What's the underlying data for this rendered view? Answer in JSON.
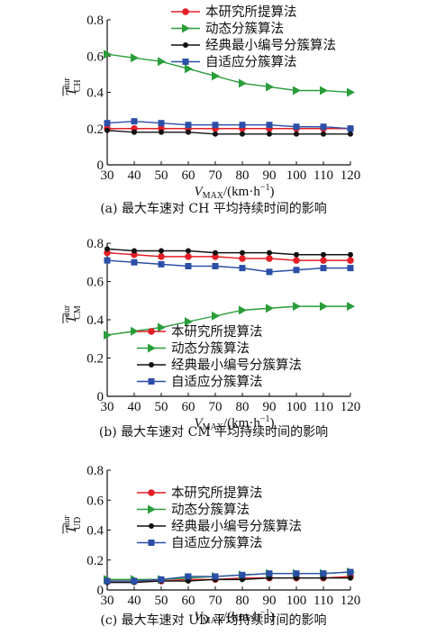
{
  "chart_data": [
    {
      "type": "line",
      "caption": "(a) 最大车速对 CH 平均持续时间的影响",
      "xlabel": {
        "var": "V",
        "sub": "MAX",
        "unit": "/(km·h",
        "sup": "−1",
        "close": ")"
      },
      "ylabel": {
        "var": "T",
        "sup": "dur",
        "sub": "CH"
      },
      "x": [
        30,
        40,
        50,
        60,
        70,
        80,
        90,
        100,
        110,
        120
      ],
      "xlim": [
        30,
        120
      ],
      "ylim": [
        0,
        0.8
      ],
      "yticks": [
        "0",
        "0.2",
        "0.4",
        "0.6",
        "0.8"
      ],
      "xticks": [
        "30",
        "40",
        "50",
        "60",
        "70",
        "80",
        "90",
        "100",
        "110",
        "120"
      ],
      "legend_position": "top",
      "series": [
        {
          "name": "本研究所提算法",
          "color": "#e41e26",
          "marker": "circle",
          "values": [
            0.2,
            0.2,
            0.2,
            0.2,
            0.2,
            0.2,
            0.2,
            0.2,
            0.2,
            0.2
          ]
        },
        {
          "name": "动态分簇算法",
          "color": "#2a9d3a",
          "marker": "triangle",
          "values": [
            0.61,
            0.59,
            0.57,
            0.53,
            0.49,
            0.45,
            0.43,
            0.41,
            0.41,
            0.4
          ]
        },
        {
          "name": "经典最小编号分簇算法",
          "color": "#111111",
          "marker": "circle",
          "values": [
            0.19,
            0.18,
            0.18,
            0.18,
            0.17,
            0.17,
            0.17,
            0.17,
            0.17,
            0.17
          ]
        },
        {
          "name": "自适应分簇算法",
          "color": "#2b4fa8",
          "marker": "square",
          "values": [
            0.23,
            0.24,
            0.23,
            0.22,
            0.22,
            0.22,
            0.22,
            0.21,
            0.21,
            0.2
          ]
        }
      ]
    },
    {
      "type": "line",
      "caption": "(b) 最大车速对 CM 平均持续时间的影响",
      "xlabel": {
        "var": "V",
        "sub": "MAX",
        "unit": "/(km·h",
        "sup": "−1",
        "close": ")"
      },
      "ylabel": {
        "var": "T",
        "sup": "dur",
        "sub": "CM"
      },
      "x": [
        30,
        40,
        50,
        60,
        70,
        80,
        90,
        100,
        110,
        120
      ],
      "xlim": [
        30,
        120
      ],
      "ylim": [
        0,
        0.8
      ],
      "yticks": [
        "0",
        "0.2",
        "0.4",
        "0.6",
        "0.8"
      ],
      "xticks": [
        "30",
        "40",
        "50",
        "60",
        "70",
        "80",
        "90",
        "100",
        "110",
        "120"
      ],
      "legend_position": "bottom-right",
      "series": [
        {
          "name": "本研究所提算法",
          "color": "#e41e26",
          "marker": "circle",
          "values": [
            0.75,
            0.74,
            0.73,
            0.73,
            0.73,
            0.72,
            0.72,
            0.71,
            0.71,
            0.71
          ]
        },
        {
          "name": "动态分簇算法",
          "color": "#2a9d3a",
          "marker": "triangle",
          "values": [
            0.32,
            0.34,
            0.36,
            0.39,
            0.42,
            0.45,
            0.46,
            0.47,
            0.47,
            0.47
          ]
        },
        {
          "name": "经典最小编号分簇算法",
          "color": "#111111",
          "marker": "circle",
          "values": [
            0.77,
            0.76,
            0.76,
            0.76,
            0.75,
            0.75,
            0.75,
            0.74,
            0.74,
            0.74
          ]
        },
        {
          "name": "自适应分簇算法",
          "color": "#2b4fa8",
          "marker": "square",
          "values": [
            0.71,
            0.7,
            0.69,
            0.68,
            0.68,
            0.67,
            0.65,
            0.66,
            0.67,
            0.67
          ]
        }
      ]
    },
    {
      "type": "line",
      "caption": "(c) 最大车速对 UD 平均持续时间的影响",
      "xlabel": {
        "var": "V",
        "sub": "MAX",
        "unit": "/(km·h",
        "sup": "−1",
        "close": ")"
      },
      "ylabel": {
        "var": "T",
        "sup": "dur",
        "sub": "UD"
      },
      "x": [
        30,
        40,
        50,
        60,
        70,
        80,
        90,
        100,
        110,
        120
      ],
      "xlim": [
        30,
        120
      ],
      "ylim": [
        0,
        0.8
      ],
      "yticks": [
        "0",
        "0.2",
        "0.4",
        "0.6",
        "0.8"
      ],
      "xticks": [
        "30",
        "40",
        "50",
        "60",
        "70",
        "80",
        "90",
        "100",
        "110",
        "120"
      ],
      "legend_position": "top",
      "series": [
        {
          "name": "本研究所提算法",
          "color": "#e41e26",
          "marker": "circle",
          "values": [
            0.06,
            0.06,
            0.06,
            0.07,
            0.07,
            0.08,
            0.08,
            0.08,
            0.08,
            0.09
          ]
        },
        {
          "name": "动态分簇算法",
          "color": "#2a9d3a",
          "marker": "triangle",
          "values": [
            0.07,
            0.07,
            0.07,
            0.08,
            0.09,
            0.1,
            0.11,
            0.11,
            0.11,
            0.12
          ]
        },
        {
          "name": "经典最小编号分簇算法",
          "color": "#111111",
          "marker": "circle",
          "values": [
            0.05,
            0.05,
            0.06,
            0.06,
            0.07,
            0.07,
            0.08,
            0.08,
            0.08,
            0.08
          ]
        },
        {
          "name": "自适应分簇算法",
          "color": "#2b4fa8",
          "marker": "square",
          "values": [
            0.06,
            0.06,
            0.07,
            0.09,
            0.09,
            0.1,
            0.11,
            0.11,
            0.11,
            0.12
          ]
        }
      ]
    }
  ]
}
